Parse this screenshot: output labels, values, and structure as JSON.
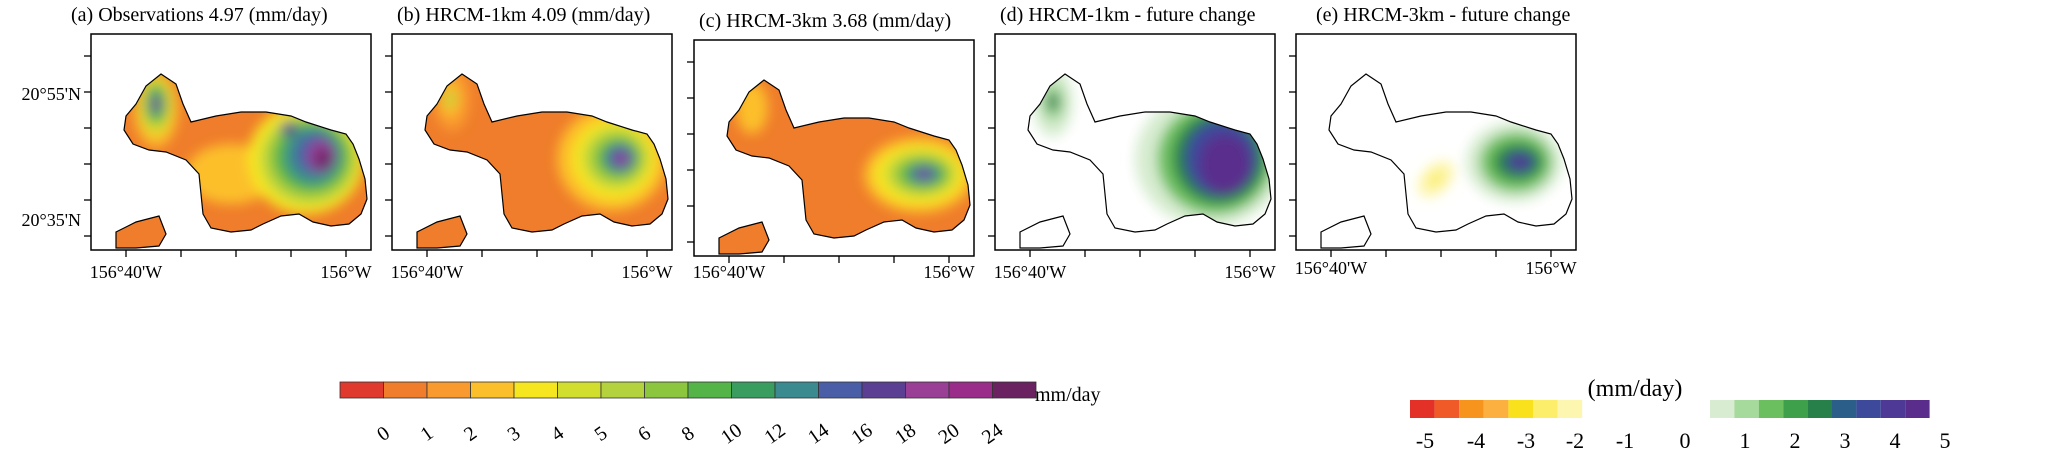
{
  "panels": [
    {
      "title": "(a) Observations    4.97 (mm/day)",
      "kind": "abs",
      "variant": "obs"
    },
    {
      "title": "(b) HRCM-1km    4.09 (mm/day)",
      "kind": "abs",
      "variant": "h1"
    },
    {
      "title": "(c) HRCM-3km    3.68 (mm/day)",
      "kind": "abs",
      "variant": "h3"
    },
    {
      "title": "(d) HRCM-1km  - future change",
      "kind": "chg",
      "variant": "d1"
    },
    {
      "title": "(e) HRCM-3km  - future change",
      "kind": "chg",
      "variant": "d3"
    }
  ],
  "axes": {
    "lat_labels": [
      "20°55'N",
      "20°35'N"
    ],
    "lon_labels": [
      "156°40'W",
      "156°W"
    ]
  },
  "colorbar_precip": {
    "unit": "mm/day",
    "tick_labels": [
      "0",
      "1",
      "2",
      "3",
      "4",
      "5",
      "6",
      "8",
      "10",
      "12",
      "14",
      "16",
      "18",
      "20",
      "24"
    ],
    "colors": [
      "#e03a2f",
      "#ef7d2b",
      "#f99a2e",
      "#fcbf2c",
      "#f5e620",
      "#d2de2e",
      "#b3d23d",
      "#8cc63f",
      "#55b447",
      "#3a9d60",
      "#3a8a8f",
      "#4a5ea8",
      "#5b3f93",
      "#9a3f96",
      "#9b2d8a",
      "#6a2261"
    ]
  },
  "colorbar_change": {
    "unit": "(mm/day)",
    "tick_labels": [
      "-5",
      "-4",
      "-3",
      "-2",
      "-1",
      "0",
      "1",
      "2",
      "3",
      "4",
      "5"
    ],
    "neg_colors": [
      "#e33127",
      "#f05a28",
      "#f7941d",
      "#fbb040",
      "#f9e11e",
      "#fced6a",
      "#fdf6b0"
    ],
    "pos_colors": [
      "#d7ecd0",
      "#a6d99c",
      "#6cbf5e",
      "#3ea04a",
      "#277f4a",
      "#2b5f8a",
      "#3d4a9c",
      "#4e3a96",
      "#5a2d8c"
    ]
  }
}
